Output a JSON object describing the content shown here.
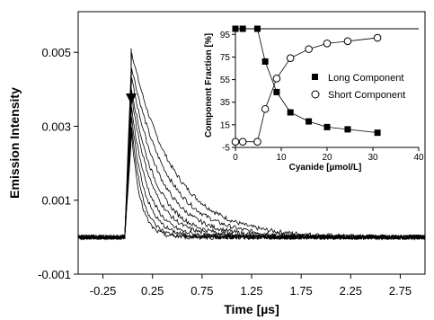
{
  "chart_data": [
    {
      "type": "line",
      "xlabel": "Time [µs]",
      "ylabel": "Emission Intensity",
      "xlim": [
        -0.5,
        3.0
      ],
      "ylim": [
        -0.001,
        0.0061
      ],
      "xticks": [
        -0.25,
        0.25,
        0.75,
        1.25,
        1.75,
        2.25,
        2.75
      ],
      "xtick_labels": [
        "-0.25",
        "0.25",
        "0.75",
        "1.25",
        "1.75",
        "2.25",
        "2.75"
      ],
      "yticks": [
        -0.001,
        0.001,
        0.003,
        0.005
      ],
      "ytick_labels": [
        "-0.001",
        "0.001",
        "0.003",
        "0.005"
      ],
      "grid": false,
      "annotation": "downward arrow indicating decreasing intensity with increasing cyanide",
      "series": [
        {
          "values": [
            {
              "peak": 0.005,
              "tau": 0.42
            }
          ]
        },
        {
          "values": [
            {
              "peak": 0.0046,
              "tau": 0.36
            }
          ]
        },
        {
          "values": [
            {
              "peak": 0.0043,
              "tau": 0.3
            }
          ]
        },
        {
          "values": [
            {
              "peak": 0.004,
              "tau": 0.25
            }
          ]
        },
        {
          "values": [
            {
              "peak": 0.0038,
              "tau": 0.21
            }
          ]
        },
        {
          "values": [
            {
              "peak": 0.0035,
              "tau": 0.17
            }
          ]
        },
        {
          "values": [
            {
              "peak": 0.0032,
              "tau": 0.14
            }
          ]
        },
        {
          "values": [
            {
              "peak": 0.003,
              "tau": 0.11
            }
          ]
        },
        {
          "values": [
            {
              "peak": 0.0028,
              "tau": 0.09
            }
          ]
        }
      ]
    },
    {
      "type": "line",
      "xlabel": "Cyanide [µmol/L]",
      "ylabel": "Component Fraction [%]",
      "xlim": [
        0,
        40
      ],
      "ylim": [
        -5,
        100
      ],
      "xticks": [
        0,
        10,
        20,
        30,
        40
      ],
      "yticks": [
        -5,
        15,
        35,
        55,
        75,
        95
      ],
      "legend": "right",
      "series": [
        {
          "name": "Long Component",
          "marker": "filled-square",
          "x": [
            0,
            1.6,
            4.8,
            6.5,
            9,
            12,
            16,
            20,
            24.5,
            31
          ],
          "y": [
            100,
            100,
            100,
            71,
            44,
            26,
            18,
            13,
            11,
            8
          ]
        },
        {
          "name": "Short Component",
          "marker": "open-circle",
          "x": [
            0,
            1.6,
            4.8,
            6.5,
            9,
            12,
            16,
            20,
            24.5,
            31
          ],
          "y": [
            0,
            0,
            0,
            29,
            56,
            74,
            82,
            87,
            89,
            92
          ]
        }
      ]
    }
  ]
}
